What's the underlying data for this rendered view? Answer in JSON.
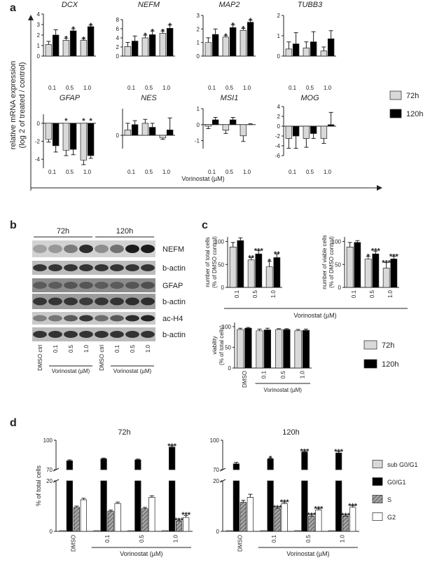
{
  "panel_labels": [
    "a",
    "b",
    "c",
    "d"
  ],
  "panel_a": {
    "ylabel": [
      "relative mRNA expression",
      "(log 2 of treated / control)"
    ],
    "xlabel": "Vorinostat (µM)"
  },
  "panel_b": {
    "time_labels": [
      "72h",
      "120h"
    ],
    "bands": [
      "NEFM",
      "b-actin",
      "GFAP",
      "b-actin",
      "ac-H4",
      "b-actin"
    ],
    "lanes": [
      "DMSO ctrl",
      "0.1",
      "0.5",
      "1.0",
      "DMSO ctrl",
      "0.1",
      "0.5",
      "1.0"
    ],
    "xlabels": [
      "Vorinostat (µM)",
      "Vorinostat (µM)"
    ]
  },
  "panel_c": {
    "xlabel": "Vorinostat (µM)"
  },
  "chart_data": [
    {
      "type": "bar",
      "title": "DCX",
      "categories": [
        "0.1",
        "0.5",
        "1.0"
      ],
      "ylim": [
        0,
        4
      ],
      "yticks": [
        0,
        1,
        2,
        3,
        4
      ],
      "series": [
        {
          "name": "72h",
          "color": "#d9d9d9",
          "values": [
            1.1,
            1.5,
            1.5
          ],
          "errors": [
            0.3,
            0.2,
            0.15
          ],
          "annotations": [
            null,
            "*",
            "*"
          ]
        },
        {
          "name": "120h",
          "color": "#000000",
          "values": [
            2.0,
            2.4,
            2.8
          ],
          "errors": [
            0.5,
            0.2,
            0.15
          ],
          "annotations": [
            null,
            "*",
            "*"
          ]
        }
      ]
    },
    {
      "type": "bar",
      "title": "NEFM",
      "categories": [
        "0.1",
        "0.5",
        "1.0"
      ],
      "ylim": [
        0,
        8
      ],
      "yticks": [
        0,
        2,
        4,
        6,
        8
      ],
      "series": [
        {
          "name": "72h",
          "color": "#d9d9d9",
          "values": [
            2.1,
            4.0,
            5.0
          ],
          "errors": [
            0.9,
            0.6,
            0.5
          ],
          "annotations": [
            null,
            "*",
            "*"
          ]
        },
        {
          "name": "120h",
          "color": "#000000",
          "values": [
            3.3,
            4.7,
            6.1
          ],
          "errors": [
            1.1,
            0.8,
            0.7
          ],
          "annotations": [
            null,
            "*",
            "*"
          ]
        }
      ]
    },
    {
      "type": "bar",
      "title": "MAP2",
      "categories": [
        "0.1",
        "0.5",
        "1.0"
      ],
      "ylim": [
        0,
        3
      ],
      "yticks": [
        0,
        1,
        2,
        3
      ],
      "series": [
        {
          "name": "72h",
          "color": "#d9d9d9",
          "values": [
            1.0,
            1.4,
            1.9
          ],
          "errors": [
            0.35,
            0.1,
            0.15
          ],
          "annotations": [
            null,
            "*",
            "*"
          ]
        },
        {
          "name": "120h",
          "color": "#000000",
          "values": [
            1.6,
            2.1,
            2.5
          ],
          "errors": [
            0.4,
            0.2,
            0.15
          ],
          "annotations": [
            null,
            "*",
            "*"
          ]
        }
      ]
    },
    {
      "type": "bar",
      "title": "TUBB3",
      "categories": [
        "0.1",
        "0.5",
        "1.0"
      ],
      "ylim": [
        0,
        2
      ],
      "yticks": [
        0,
        1,
        2
      ],
      "series": [
        {
          "name": "72h",
          "color": "#d9d9d9",
          "values": [
            0.35,
            0.4,
            0.25
          ],
          "errors": [
            0.35,
            0.3,
            0.2
          ]
        },
        {
          "name": "120h",
          "color": "#000000",
          "values": [
            0.6,
            0.7,
            0.85
          ],
          "errors": [
            0.55,
            0.5,
            0.4
          ]
        }
      ]
    },
    {
      "type": "bar",
      "title": "GFAP",
      "categories": [
        "0.1",
        "0.5",
        "1.0"
      ],
      "ylim": [
        -5,
        1
      ],
      "yticks": [
        -4,
        -2,
        0
      ],
      "series": [
        {
          "name": "72h",
          "color": "#d9d9d9",
          "values": [
            -1.8,
            -3.0,
            -4.1
          ],
          "errors": [
            0.3,
            0.6,
            0.5
          ],
          "annotations": [
            null,
            "*",
            "*"
          ]
        },
        {
          "name": "120h",
          "color": "#000000",
          "values": [
            -2.5,
            -2.9,
            -3.6
          ],
          "errors": [
            0.7,
            0.6,
            0.3
          ],
          "annotations": [
            null,
            null,
            "*"
          ]
        }
      ]
    },
    {
      "type": "bar",
      "title": "NES",
      "categories": [
        "0.1",
        "0.5",
        "1.0"
      ],
      "ylim": [
        -0.5,
        1
      ],
      "yticks": [
        0
      ],
      "series": [
        {
          "name": "72h",
          "color": "#d9d9d9",
          "values": [
            0.2,
            0.45,
            -0.1
          ],
          "errors": [
            0.25,
            0.15,
            0.05
          ]
        },
        {
          "name": "120h",
          "color": "#000000",
          "values": [
            0.4,
            0.3,
            0.2
          ],
          "errors": [
            0.15,
            0.15,
            0.45
          ]
        }
      ]
    },
    {
      "type": "bar",
      "title": "MSI1",
      "categories": [
        "0.1",
        "0.5",
        "1.0"
      ],
      "ylim": [
        -1.5,
        1
      ],
      "yticks": [
        -1,
        0,
        1
      ],
      "series": [
        {
          "name": "72h",
          "color": "#d9d9d9",
          "values": [
            -0.1,
            -0.35,
            -0.7
          ],
          "errors": [
            0.15,
            0.2,
            0.35
          ]
        },
        {
          "name": "120h",
          "color": "#000000",
          "values": [
            0.3,
            0.3,
            0.0
          ],
          "errors": [
            0.15,
            0.15,
            0.05
          ]
        }
      ]
    },
    {
      "type": "bar",
      "title": "MOG",
      "categories": [
        "0.1",
        "0.5",
        "1.0"
      ],
      "ylim": [
        -6,
        4
      ],
      "yticks": [
        -6,
        -4,
        -2,
        0,
        2,
        4
      ],
      "series": [
        {
          "name": "72h",
          "color": "#d9d9d9",
          "values": [
            -2.5,
            -2.5,
            -2.5
          ],
          "errors": [
            2.0,
            1.8,
            1.0
          ]
        },
        {
          "name": "120h",
          "color": "#000000",
          "values": [
            -2.0,
            -1.5,
            0.3
          ],
          "errors": [
            2.5,
            1.0,
            2.5
          ]
        }
      ]
    },
    {
      "type": "bar",
      "ylabel": [
        "number of total cells",
        "(% of DMSO control)"
      ],
      "categories": [
        "0.1",
        "0.5",
        "1.0"
      ],
      "ylim": [
        0,
        110
      ],
      "yticks": [
        0,
        50,
        100
      ],
      "series": [
        {
          "name": "72h",
          "color": "#d9d9d9",
          "values": [
            88,
            60,
            45
          ],
          "errors": [
            10,
            5,
            12
          ],
          "annotations": [
            null,
            "**",
            "*"
          ]
        },
        {
          "name": "120h",
          "color": "#000000",
          "values": [
            102,
            73,
            65
          ],
          "errors": [
            6,
            7,
            8
          ],
          "annotations": [
            null,
            "***",
            "**"
          ]
        }
      ]
    },
    {
      "type": "bar",
      "ylabel": [
        "number of viable cells",
        "(% of DMSO control)"
      ],
      "categories": [
        "0.1",
        "0.5",
        "1.0"
      ],
      "ylim": [
        0,
        110
      ],
      "yticks": [
        0,
        50,
        100
      ],
      "series": [
        {
          "name": "72h",
          "color": "#d9d9d9",
          "values": [
            88,
            62,
            42
          ],
          "errors": [
            10,
            6,
            12
          ],
          "annotations": [
            null,
            "*",
            "***"
          ]
        },
        {
          "name": "120h",
          "color": "#000000",
          "values": [
            98,
            73,
            62
          ],
          "errors": [
            4,
            6,
            6
          ],
          "annotations": [
            null,
            "***",
            "***"
          ]
        }
      ]
    },
    {
      "type": "bar",
      "ylabel": [
        "viability",
        "(% of total cells)"
      ],
      "xlabel": "Vorinostat (µM)",
      "categories": [
        "DMSO",
        "0.1",
        "0.5",
        "1.0"
      ],
      "ylim": [
        0,
        110
      ],
      "yticks": [
        0,
        50,
        100
      ],
      "series": [
        {
          "name": "72h",
          "color": "#d9d9d9",
          "values": [
            93,
            90,
            93,
            90
          ],
          "errors": [
            3,
            4,
            2,
            3
          ]
        },
        {
          "name": "120h",
          "color": "#000000",
          "values": [
            96,
            92,
            93,
            91
          ],
          "errors": [
            2,
            4,
            2,
            3
          ]
        }
      ]
    },
    {
      "type": "bar",
      "title": "72h",
      "ylabel": [
        "% of total cells"
      ],
      "xlabel": "Vorinostat (µM)",
      "categories": [
        "DMSO",
        "0.1",
        "0.5",
        "1.0"
      ],
      "ylim": [
        0,
        100
      ],
      "ybreak": [
        20,
        70
      ],
      "yticks": [
        0,
        20,
        70,
        100
      ],
      "series": [
        {
          "name": "sub G0/G1",
          "color": "#d9d9d9",
          "values": [
            0.3,
            0.3,
            0.3,
            0.3
          ]
        },
        {
          "name": "G0/G1",
          "color": "#000000",
          "values": [
            79,
            81,
            80,
            93
          ],
          "errors": [
            1,
            0.8,
            0.8,
            1.2
          ],
          "annotations": [
            null,
            null,
            null,
            "***"
          ]
        },
        {
          "name": "S",
          "color": "#a6a6a6",
          "hatch": true,
          "values": [
            9.5,
            8,
            9,
            4
          ],
          "errors": [
            0.5,
            0.4,
            0.5,
            0.4
          ],
          "annotations": [
            null,
            null,
            null,
            "***"
          ]
        },
        {
          "name": "G2",
          "color": "#ffffff",
          "values": [
            12.5,
            11,
            13.5,
            5.5
          ],
          "errors": [
            0.6,
            0.6,
            0.6,
            0.8
          ],
          "annotations": [
            null,
            null,
            null,
            "***"
          ]
        }
      ]
    },
    {
      "type": "bar",
      "title": "120h",
      "xlabel": "Vorinostat (µM)",
      "categories": [
        "DMSO",
        "0.1",
        "0.5",
        "1.0"
      ],
      "ylim": [
        0,
        100
      ],
      "ybreak": [
        20,
        70
      ],
      "yticks": [
        0,
        20,
        70,
        100
      ],
      "series": [
        {
          "name": "sub G0/G1",
          "color": "#d9d9d9",
          "values": [
            0.3,
            0.3,
            0.3,
            0.3
          ]
        },
        {
          "name": "G0/G1",
          "color": "#000000",
          "values": [
            76,
            81,
            88,
            87
          ],
          "errors": [
            1.5,
            0.8,
            0.8,
            1.5
          ],
          "annotations": [
            null,
            "*",
            "***",
            "***"
          ]
        },
        {
          "name": "S",
          "color": "#a6a6a6",
          "hatch": true,
          "values": [
            11.5,
            9,
            6,
            6
          ],
          "errors": [
            0.8,
            0.5,
            0.5,
            0.4
          ],
          "annotations": [
            null,
            "***",
            "***",
            "***"
          ]
        },
        {
          "name": "G2",
          "color": "#ffffff",
          "values": [
            13.5,
            11,
            8.5,
            9.5
          ],
          "errors": [
            1.2,
            0.6,
            0.5,
            0.6
          ],
          "annotations": [
            null,
            "***",
            "***",
            "***"
          ]
        }
      ]
    }
  ]
}
